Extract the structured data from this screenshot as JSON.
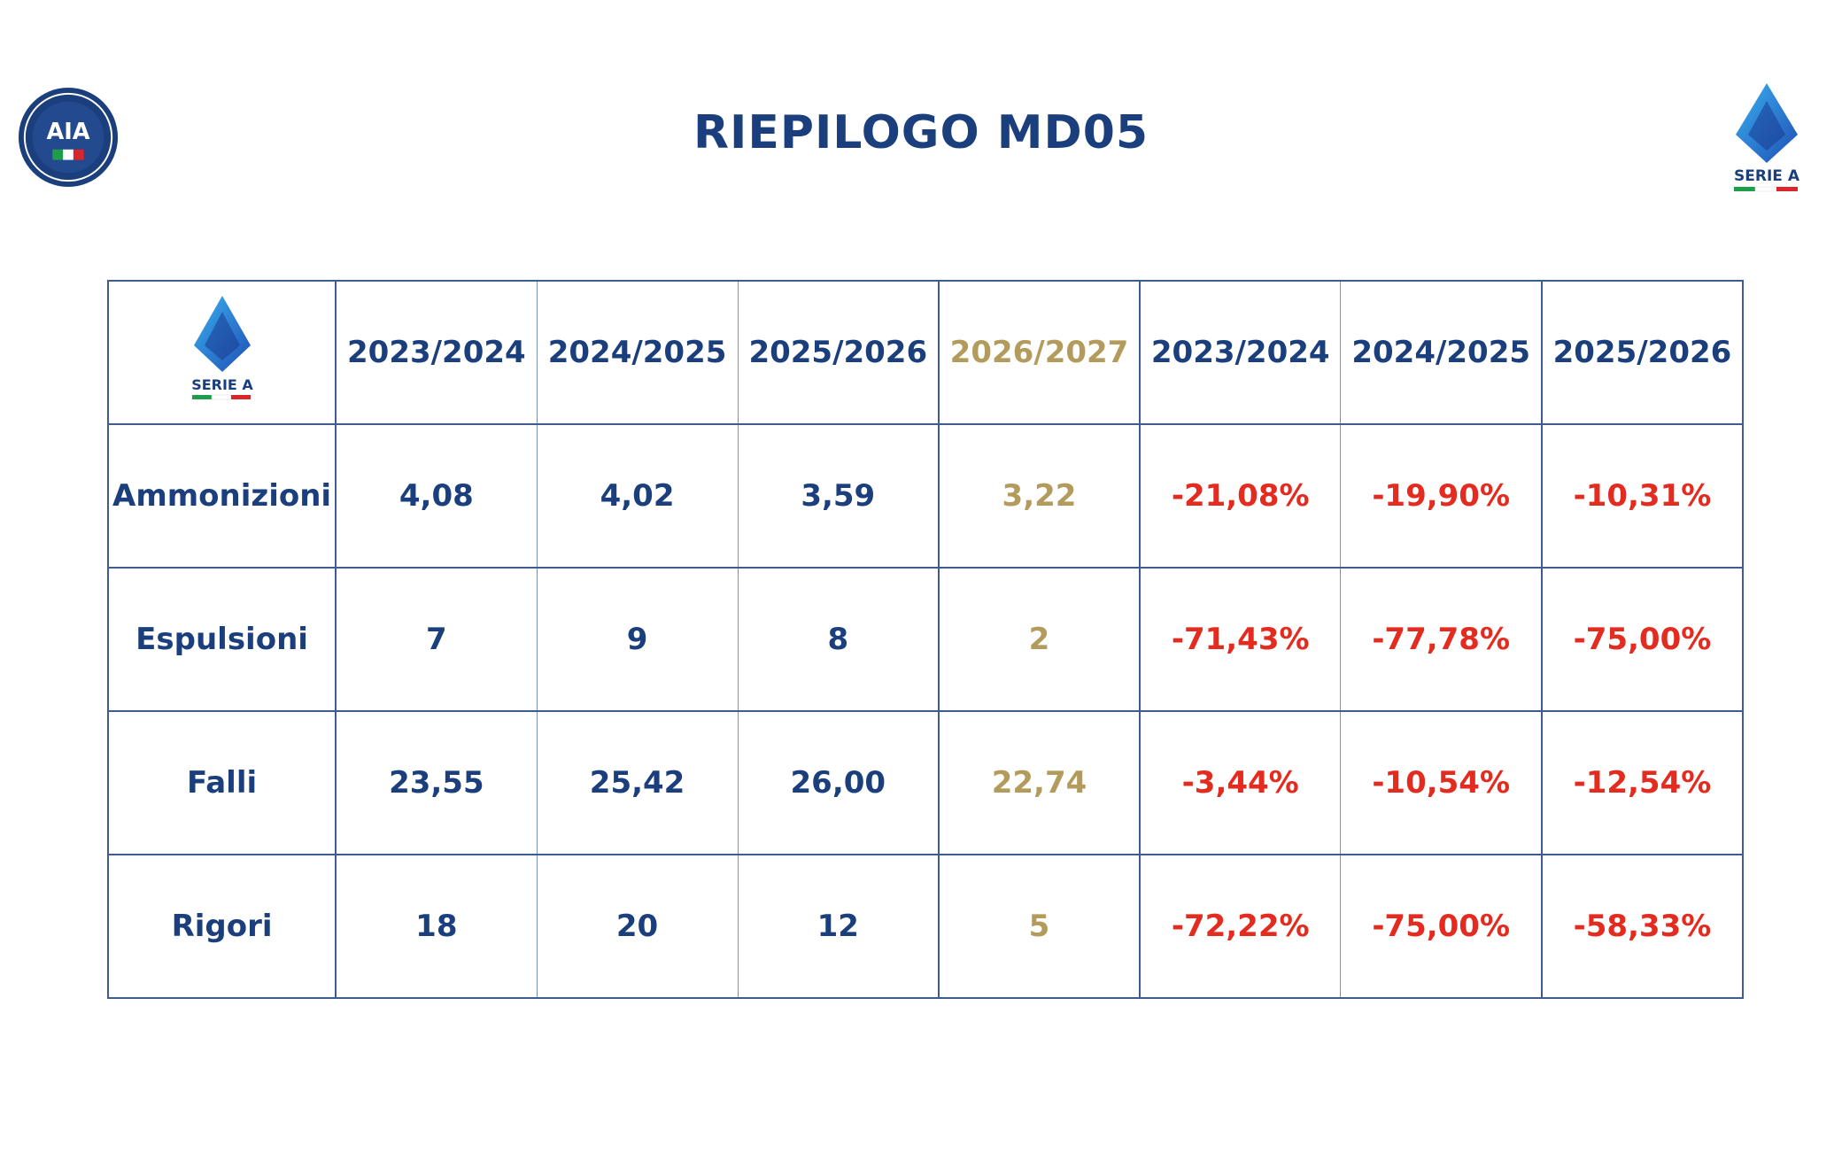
{
  "title": "RIEPILOGO MD05",
  "logos": {
    "aia_text": "AIA",
    "seriea_text": "SERIE A"
  },
  "colors": {
    "navy": "#1b3f7c",
    "gold": "#b39b5c",
    "red": "#e32b1f",
    "border": "#3d5c94"
  },
  "table": {
    "headers": [
      "2023/2024",
      "2024/2025",
      "2025/2026",
      "2026/2027",
      "2023/2024",
      "2024/2025",
      "2025/2026"
    ],
    "rows": [
      {
        "label": "Ammonizioni",
        "values": [
          "4,08",
          "4,02",
          "3,59",
          "3,22"
        ],
        "deltas": [
          "-21,08%",
          "-19,90%",
          "-10,31%"
        ]
      },
      {
        "label": "Espulsioni",
        "values": [
          "7",
          "9",
          "8",
          "2"
        ],
        "deltas": [
          "-71,43%",
          "-77,78%",
          "-75,00%"
        ]
      },
      {
        "label": "Falli",
        "values": [
          "23,55",
          "25,42",
          "26,00",
          "22,74"
        ],
        "deltas": [
          "-3,44%",
          "-10,54%",
          "-12,54%"
        ]
      },
      {
        "label": "Rigori",
        "values": [
          "18",
          "20",
          "12",
          "5"
        ],
        "deltas": [
          "-72,22%",
          "-75,00%",
          "-58,33%"
        ]
      }
    ]
  }
}
